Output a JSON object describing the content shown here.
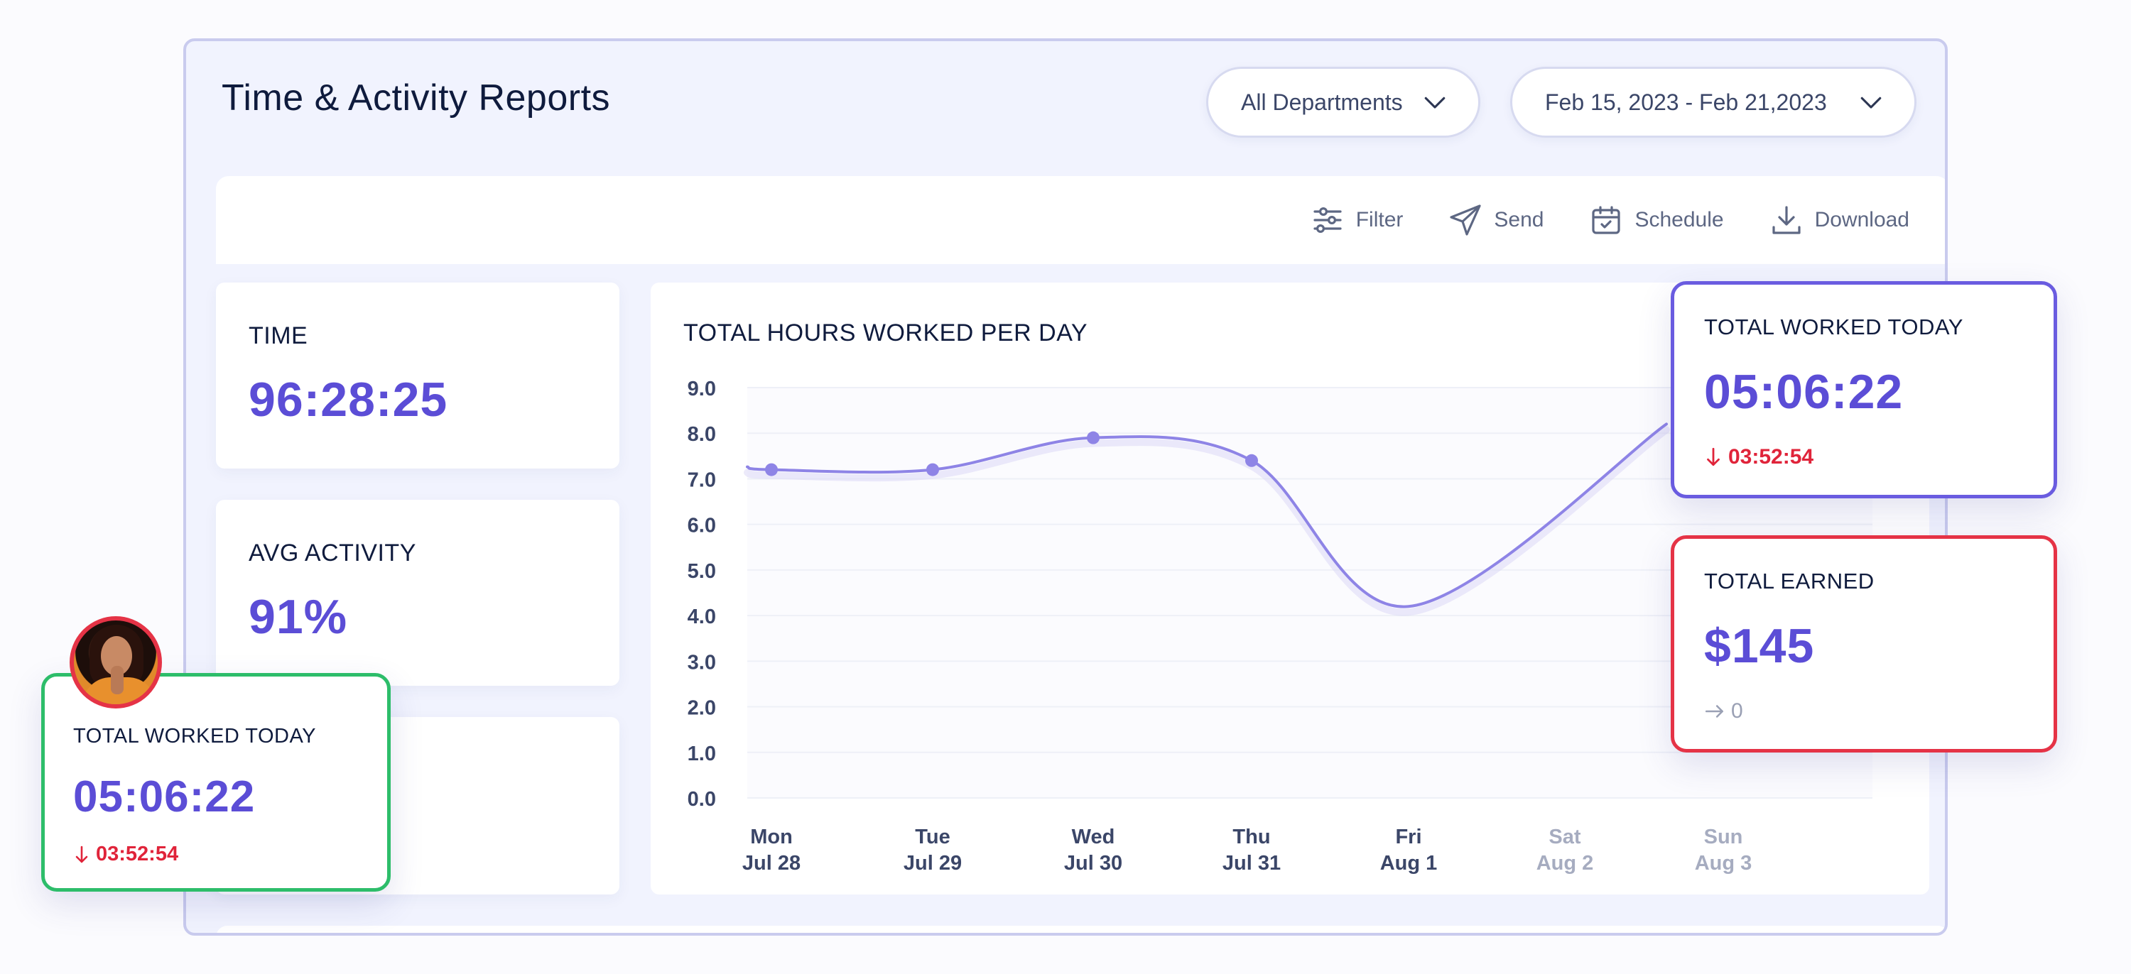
{
  "header": {
    "title": "Time & Activity Reports",
    "department_select": "All Departments",
    "date_range": "Feb 15, 2023 - Feb 21,2023"
  },
  "toolbar": {
    "filter": "Filter",
    "send": "Send",
    "schedule": "Schedule",
    "download": "Download"
  },
  "stats": {
    "time_label": "TIME",
    "time_value": "96:28:25",
    "activity_label": "AVG ACTIVITY",
    "activity_value": "91%"
  },
  "chart_data": {
    "type": "line",
    "title": "TOTAL HOURS WORKED PER DAY",
    "y_ticks": [
      "9.0",
      "8.0",
      "7.0",
      "6.0",
      "5.0",
      "4.0",
      "3.0",
      "2.0",
      "1.0",
      "0.0"
    ],
    "ylim": [
      0,
      9
    ],
    "categories": [
      {
        "day": "Mon",
        "date": "Jul 28"
      },
      {
        "day": "Tue",
        "date": "Jul 29"
      },
      {
        "day": "Wed",
        "date": "Jul 30"
      },
      {
        "day": "Thu",
        "date": "Jul 31"
      },
      {
        "day": "Fri",
        "date": "Aug 1"
      },
      {
        "day": "Sat",
        "date": "Aug 2"
      },
      {
        "day": "Sun",
        "date": "Aug 3"
      }
    ],
    "values": [
      7.2,
      7.2,
      7.9,
      7.4,
      4.2,
      null,
      null
    ],
    "partial_segment_value": 8.2,
    "line_color": "#8e84e6",
    "grid": true
  },
  "cards": {
    "worked_today_purple": {
      "label": "TOTAL WORKED TODAY",
      "value": "05:06:22",
      "delta": "03:52:54",
      "border_color": "#6a5ce0"
    },
    "earned": {
      "label": "TOTAL EARNED",
      "value": "$145",
      "delta": "0",
      "border_color": "#e53346"
    },
    "worked_today_green": {
      "label": "TOTAL WORKED TODAY",
      "value": "05:06:22",
      "delta": "03:52:54",
      "border_color": "#2dbd6a"
    }
  },
  "colors": {
    "accent": "#5b4dd6",
    "negative": "#e0243a",
    "neutral": "#9aa0b4"
  }
}
